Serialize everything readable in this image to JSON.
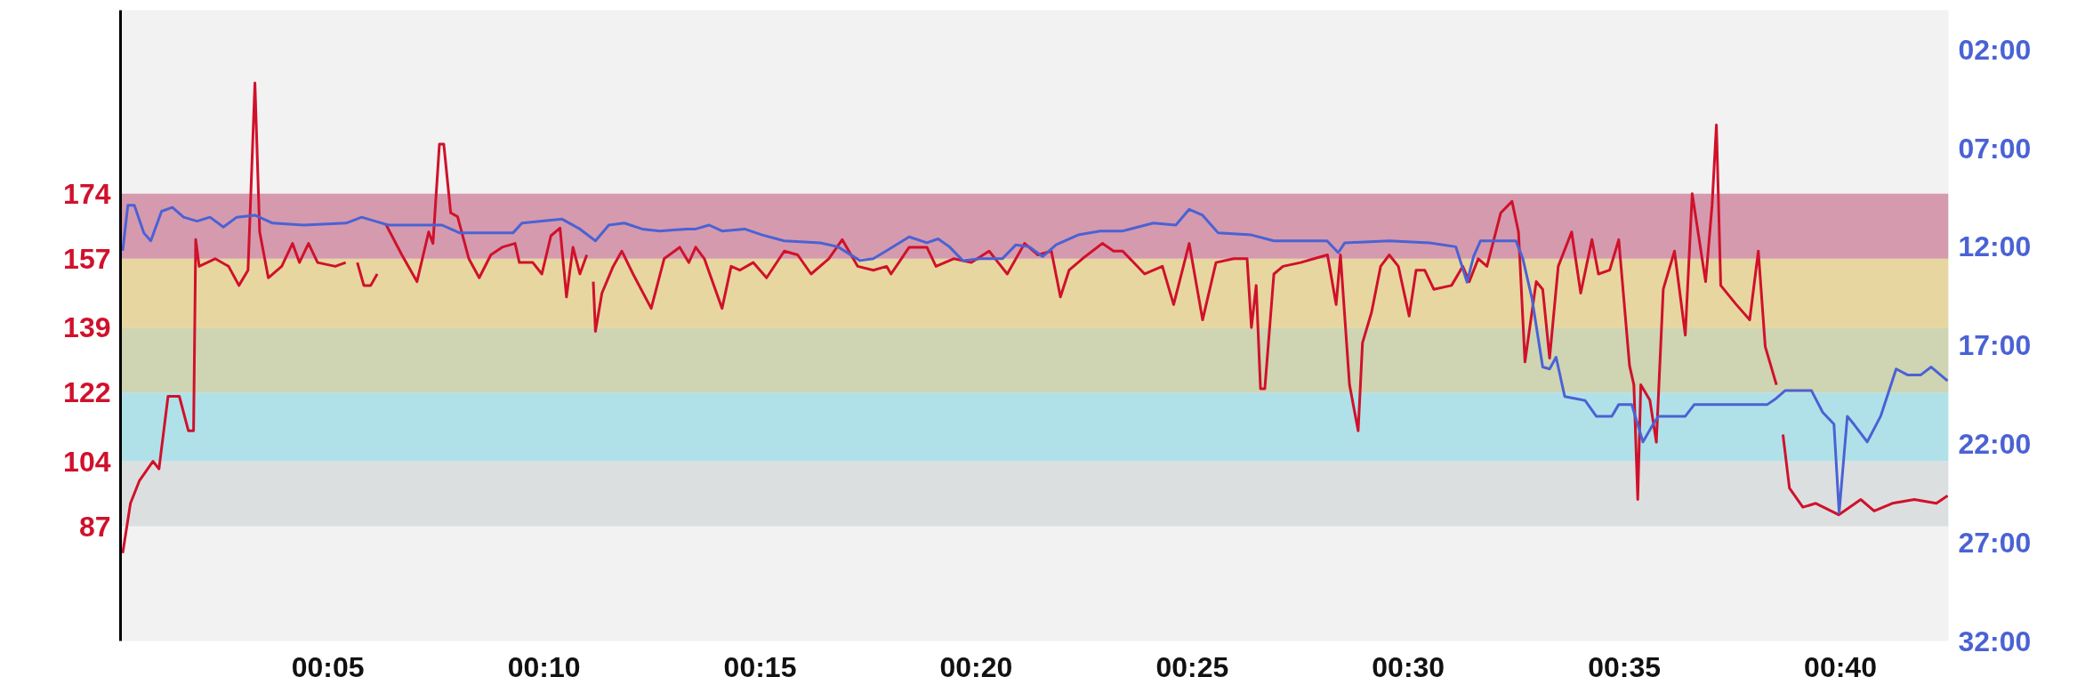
{
  "chart_data": {
    "type": "line",
    "xlim": [
      0.2,
      42.5
    ],
    "xticks": [
      {
        "value": 5,
        "label": "00:05"
      },
      {
        "value": 10,
        "label": "00:10"
      },
      {
        "value": 15,
        "label": "00:15"
      },
      {
        "value": 20,
        "label": "00:20"
      },
      {
        "value": 25,
        "label": "00:25"
      },
      {
        "value": 30,
        "label": "00:30"
      },
      {
        "value": 35,
        "label": "00:35"
      },
      {
        "value": 40,
        "label": "00:40"
      }
    ],
    "ylim": [
      57,
      222
    ],
    "yticks": [
      87,
      104,
      122,
      139,
      157,
      174
    ],
    "y2lim": [
      32,
      0
    ],
    "y2ticks": [
      {
        "value": 2,
        "label": "02:00"
      },
      {
        "value": 7,
        "label": "07:00"
      },
      {
        "value": 12,
        "label": "12:00"
      },
      {
        "value": 17,
        "label": "17:00"
      },
      {
        "value": 22,
        "label": "22:00"
      },
      {
        "value": 27,
        "label": "27:00"
      },
      {
        "value": 32,
        "label": "32:00"
      }
    ],
    "bands": [
      {
        "axis": "y",
        "from": 87,
        "to": 104,
        "color": "#dcdfe0"
      },
      {
        "axis": "y",
        "from": 104,
        "to": 122,
        "color": "#b1e1e8"
      },
      {
        "axis": "y",
        "from": 122,
        "to": 139,
        "color": "#cfd4b2"
      },
      {
        "axis": "y",
        "from": 139,
        "to": 157,
        "color": "#e7d6a0"
      },
      {
        "axis": "y",
        "from": 157,
        "to": 174,
        "color": "#d59aae"
      }
    ],
    "series": [
      {
        "color": "#d0112b",
        "x": [
          0.25,
          0.43,
          0.64,
          0.95,
          1.09,
          1.3,
          1.56,
          1.77,
          1.89,
          1.94,
          2.02,
          2.39,
          2.7,
          2.94,
          3.15,
          3.31,
          3.42,
          3.62,
          3.93,
          4.18,
          4.34,
          4.55,
          4.76,
          5.17,
          5.41,
          5.5,
          5.68,
          5.83,
          5.99,
          6.14,
          6.24,
          6.34,
          6.71,
          7.06,
          7.33,
          7.43,
          7.58,
          7.68,
          7.84,
          8.0,
          8.26,
          8.5,
          8.77,
          9.03,
          9.33,
          9.43,
          9.74,
          9.95,
          10.16,
          10.37,
          10.52,
          10.67,
          10.83,
          10.99,
          11.06,
          11.14,
          11.19,
          11.34,
          11.6,
          11.8,
          12.06,
          12.48,
          12.78,
          13.14,
          13.35,
          13.51,
          13.71,
          14.12,
          14.33,
          14.53,
          14.84,
          15.15,
          15.56,
          15.87,
          16.18,
          16.59,
          16.9,
          17.26,
          17.62,
          17.93,
          18.03,
          18.45,
          18.86,
          19.07,
          19.48,
          19.89,
          20.3,
          20.51,
          20.72,
          21.12,
          21.43,
          21.74,
          21.95,
          22.15,
          22.46,
          22.92,
          23.18,
          23.39,
          23.9,
          24.31,
          24.57,
          24.93,
          25.24,
          25.55,
          25.96,
          26.27,
          26.37,
          26.48,
          26.58,
          26.68,
          26.89,
          27.1,
          27.51,
          27.82,
          28.13,
          28.33,
          28.43,
          28.64,
          28.84,
          28.94,
          29.15,
          29.36,
          29.56,
          29.77,
          30.02,
          30.18,
          30.38,
          30.59,
          31.0,
          31.26,
          31.41,
          31.62,
          31.82,
          32.14,
          32.4,
          32.55,
          32.7,
          32.96,
          33.11,
          33.27,
          33.47,
          33.78,
          33.99,
          34.25,
          34.4,
          34.66,
          34.87,
          35.12,
          35.22,
          35.31,
          35.38,
          35.59,
          35.74,
          35.9,
          36.16,
          36.41,
          36.57,
          36.88,
          37.03,
          37.13,
          37.23,
          37.59,
          37.9,
          38.1,
          38.26,
          38.52,
          38.6,
          38.67,
          38.82,
          39.13,
          39.43,
          39.96,
          40.47,
          40.78,
          41.2,
          41.71,
          42.22,
          42.48
        ],
        "values": [
          80,
          93,
          99,
          104,
          102,
          121,
          121,
          112,
          112,
          162,
          155,
          157,
          155,
          150,
          154,
          203,
          164,
          152,
          155,
          161,
          156,
          161,
          156,
          155,
          156,
          null,
          156,
          150,
          150,
          153,
          null,
          166,
          158,
          151,
          164,
          161,
          187,
          187,
          169,
          168,
          157,
          152,
          158,
          160,
          161,
          156,
          156,
          153,
          163,
          165,
          147,
          160,
          153,
          158,
          null,
          151,
          138,
          148,
          155,
          159,
          153,
          144,
          157,
          160,
          156,
          160,
          157,
          144,
          155,
          154,
          156,
          152,
          159,
          158,
          153,
          157,
          162,
          155,
          154,
          155,
          153,
          160,
          160,
          155,
          157,
          156,
          159,
          156,
          153,
          161,
          158,
          159,
          147,
          154,
          157,
          161,
          159,
          159,
          153,
          155,
          145,
          161,
          141,
          156,
          157,
          157,
          139,
          150,
          123,
          123,
          153,
          155,
          156,
          157,
          158,
          145,
          158,
          124,
          112,
          135,
          143,
          155,
          158,
          155,
          142,
          154,
          154,
          149,
          150,
          155,
          151,
          157,
          155,
          169,
          172,
          164,
          130,
          151,
          149,
          131,
          155,
          164,
          148,
          162,
          153,
          154,
          162,
          129,
          124,
          94,
          124,
          120,
          109,
          149,
          159,
          137,
          174,
          151,
          171,
          192,
          150,
          145,
          141,
          159,
          134,
          124,
          null,
          111,
          97,
          92,
          93,
          90,
          94,
          91,
          93,
          94,
          93,
          95
        ]
      },
      {
        "axis": "y2",
        "color": "#4a62d4",
        "x": [
          0.25,
          0.37,
          0.52,
          0.74,
          0.9,
          1.15,
          1.4,
          1.66,
          1.97,
          2.27,
          2.58,
          2.89,
          3.31,
          3.72,
          4.44,
          5.42,
          5.78,
          6.09,
          6.4,
          7.64,
          8.05,
          9.28,
          9.49,
          10.42,
          10.83,
          11.19,
          11.5,
          11.86,
          12.27,
          12.68,
          13.3,
          13.51,
          13.82,
          14.12,
          14.64,
          15.05,
          15.56,
          16.39,
          16.8,
          17.31,
          17.62,
          17.93,
          18.45,
          18.86,
          19.12,
          19.38,
          19.69,
          20.1,
          20.61,
          20.92,
          21.23,
          21.54,
          21.85,
          22.36,
          22.87,
          23.39,
          24.1,
          24.62,
          24.93,
          25.24,
          25.6,
          26.37,
          26.89,
          28.12,
          28.38,
          28.53,
          29.56,
          30.49,
          31.1,
          31.36,
          31.51,
          31.67,
          32.49,
          32.65,
          32.86,
          33.11,
          33.27,
          33.42,
          33.62,
          34.09,
          34.35,
          34.71,
          34.87,
          35.17,
          35.43,
          35.64,
          35.79,
          36.41,
          36.62,
          38.31,
          38.51,
          38.72,
          39.33,
          39.59,
          39.85,
          39.97,
          40.16,
          40.31,
          40.62,
          40.93,
          41.29,
          41.55,
          41.86,
          42.1,
          42.48
        ],
        "values": [
          12.2,
          9.9,
          9.9,
          11.3,
          11.7,
          10.2,
          10.0,
          10.5,
          10.7,
          10.5,
          11.0,
          10.5,
          10.4,
          10.8,
          10.9,
          10.8,
          10.5,
          10.7,
          10.9,
          10.9,
          11.3,
          11.3,
          10.8,
          10.6,
          11.1,
          11.7,
          10.9,
          10.8,
          11.1,
          11.2,
          11.1,
          11.1,
          10.9,
          11.2,
          11.1,
          11.4,
          11.7,
          11.8,
          12.0,
          12.7,
          12.6,
          12.2,
          11.5,
          11.8,
          11.6,
          12.0,
          12.7,
          12.6,
          12.6,
          11.9,
          12.0,
          12.5,
          11.9,
          11.4,
          11.2,
          11.2,
          10.8,
          10.9,
          10.1,
          10.4,
          11.3,
          11.4,
          11.7,
          11.7,
          12.3,
          11.8,
          11.7,
          11.8,
          12.0,
          13.8,
          12.5,
          11.7,
          11.7,
          12.6,
          14.6,
          18.1,
          18.2,
          17.6,
          19.6,
          19.8,
          20.6,
          20.6,
          20.0,
          20.0,
          21.9,
          21.1,
          20.6,
          20.6,
          20.0,
          20.0,
          19.7,
          19.3,
          19.3,
          20.4,
          21.0,
          25.5,
          20.6,
          21.0,
          21.9,
          20.6,
          18.2,
          18.5,
          18.5,
          18.1,
          18.8
        ]
      }
    ]
  }
}
